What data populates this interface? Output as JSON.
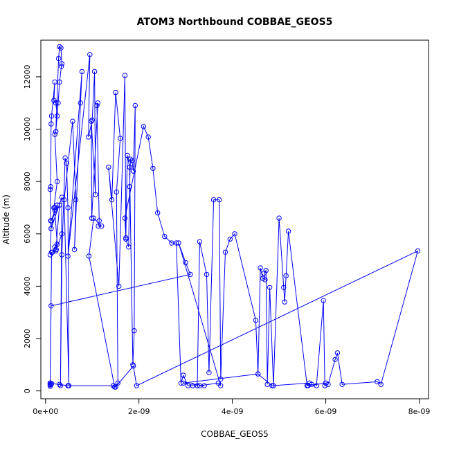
{
  "chart_data": {
    "type": "scatter",
    "title": "ATOM3 Northbound COBBAE_GEOS5",
    "xlabel": "COBBAE_GEOS5",
    "ylabel": "Altitude (m)",
    "xlim": [
      -1e-10,
      8.2e-09
    ],
    "ylim": [
      -300,
      13400
    ],
    "x_ticks": [
      0,
      2e-09,
      4e-09,
      6e-09,
      8e-09
    ],
    "x_tick_labels": [
      "0e+00",
      "2e-09",
      "4e-09",
      "6e-09",
      "8e-09"
    ],
    "y_ticks": [
      0,
      2000,
      4000,
      6000,
      8000,
      10000,
      12000
    ],
    "y_tick_labels": [
      "0",
      "2000",
      "4000",
      "6000",
      "8000",
      "10000",
      "12000"
    ],
    "series_color": "#0000ff",
    "series": [
      {
        "style": "lines+points",
        "x": [
          1e-10,
          1e-10,
          1e-10,
          1.3e-10,
          1e-10,
          1.2e-10,
          1.1e-10,
          1e-10,
          1.1e-10,
          1.2e-10,
          1.3e-10,
          2e-10,
          1.8e-10,
          2.2e-10,
          2.5e-10,
          2.2e-10,
          2.8e-10,
          3e-10,
          3.3e-10,
          3.5e-10,
          3.4e-10,
          3e-10,
          2.7e-10,
          2.2e-10,
          2e-10,
          2.5e-10,
          1.8e-10,
          2e-10,
          2.5e-10,
          2e-10,
          1.5e-10,
          2.3e-10,
          3.5e-10,
          2.2e-10,
          3e-10,
          1.2e-10,
          2.5e-10,
          2e-10,
          1.2e-10,
          3.5e-10,
          3.2e-10,
          3.5e-10,
          4.2e-10,
          4.5e-10,
          4.8e-10,
          5e-10,
          4e-10,
          5.8e-10,
          6.5e-10,
          6.2e-10,
          7.5e-10,
          7.8e-10,
          4.8e-10,
          9.5e-10,
          9.2e-10,
          1e-09,
          1.05e-09,
          1.07e-09,
          9.8e-10,
          9.9e-10,
          1.12e-09,
          1.1e-09,
          1.15e-09,
          1.13e-09,
          1.2e-09,
          1.03e-09,
          9.3e-10,
          1.48e-09,
          1.55e-09,
          1.52e-09,
          1.6e-09,
          1.5e-09,
          1.42e-09,
          1.35e-09,
          1.57e-09,
          1.7e-09,
          1.72e-09,
          1.78e-09,
          1.8e-09,
          1.82e-09,
          1.85e-09,
          1.88e-09,
          1.92e-09,
          1.9e-09,
          1.87e-09,
          1.8e-09,
          1.75e-09,
          1.72e-09,
          1.7e-09,
          2.1e-09,
          2.2e-09,
          2.3e-09,
          2.4e-09,
          2.55e-09,
          2.7e-09,
          2.8e-09,
          2.9e-09,
          2.95e-09,
          3.05e-09,
          3.15e-09,
          3.25e-09,
          3.3e-09,
          3.45e-09,
          3.5e-09,
          3.6e-09,
          3.72e-09,
          3.75e-09,
          3.85e-09,
          3.95e-09,
          4.05e-09,
          4.5e-09,
          4.55e-09,
          4.6e-09,
          4.65e-09,
          4.7e-09,
          4.68e-09,
          4.72e-09,
          4.75e-09,
          4.8e-09,
          4.88e-09,
          5e-09,
          5.1e-09,
          5.12e-09,
          5.15e-09,
          5.2e-09,
          5.6e-09,
          5.7e-09,
          5.8e-09,
          5.95e-09,
          5.98e-09,
          6.05e-09,
          6.2e-09,
          6.25e-09,
          6.35e-09,
          7.1e-09,
          7.18e-09,
          7.97e-09,
          1.95e-09,
          1.88e-09,
          1.5e-09,
          1.45e-09,
          4.8e-10,
          3e-10,
          1.3e-10,
          1e-10,
          1e-10,
          1.2e-10,
          3.1e-09,
          3e-09,
          2.85e-09,
          3.75e-09,
          3.7e-09,
          3.3e-09,
          3.4e-09,
          2.95e-09,
          4.55e-09,
          4.85e-09,
          5.65e-09,
          5.62e-09,
          6e-09
        ],
        "y": [
          180,
          230,
          300,
          5300,
          5200,
          6200,
          6500,
          7700,
          7800,
          10200,
          10500,
          11800,
          11100,
          11000,
          10500,
          9900,
          12700,
          13150,
          13100,
          12500,
          12400,
          11800,
          11000,
          9900,
          9800,
          8000,
          7000,
          6900,
          5600,
          5500,
          5300,
          5400,
          6000,
          5350,
          7100,
          6500,
          7100,
          7000,
          6200,
          7400,
          200,
          5200,
          8900,
          8700,
          7000,
          200,
          7300,
          10300,
          7300,
          5400,
          11000,
          12200,
          5150,
          12850,
          9700,
          10350,
          12200,
          7500,
          10300,
          6600,
          11000,
          10900,
          6500,
          6300,
          6300,
          6600,
          5150,
          150,
          300,
          7600,
          9650,
          11400,
          7300,
          8550,
          4000,
          12050,
          5800,
          5500,
          7800,
          8850,
          8800,
          8400,
          10900,
          2300,
          1000,
          8550,
          9000,
          5850,
          6600,
          10100,
          9700,
          8500,
          6800,
          5900,
          5650,
          5650,
          300,
          600,
          200,
          200,
          200,
          5700,
          4450,
          700,
          7300,
          7300,
          450,
          5300,
          5800,
          6000,
          2700,
          650,
          4700,
          4300,
          4250,
          4500,
          4600,
          250,
          3950,
          200,
          6600,
          3950,
          3400,
          4400,
          6100,
          200,
          250,
          200,
          3450,
          200,
          250,
          1200,
          1450,
          250,
          350,
          250,
          5350,
          200,
          950,
          150,
          200,
          200,
          250,
          280,
          300,
          250,
          3250,
          4450,
          4900,
          5650,
          200,
          300,
          200,
          200,
          300,
          650,
          200,
          300,
          200,
          300
        ]
      }
    ]
  }
}
